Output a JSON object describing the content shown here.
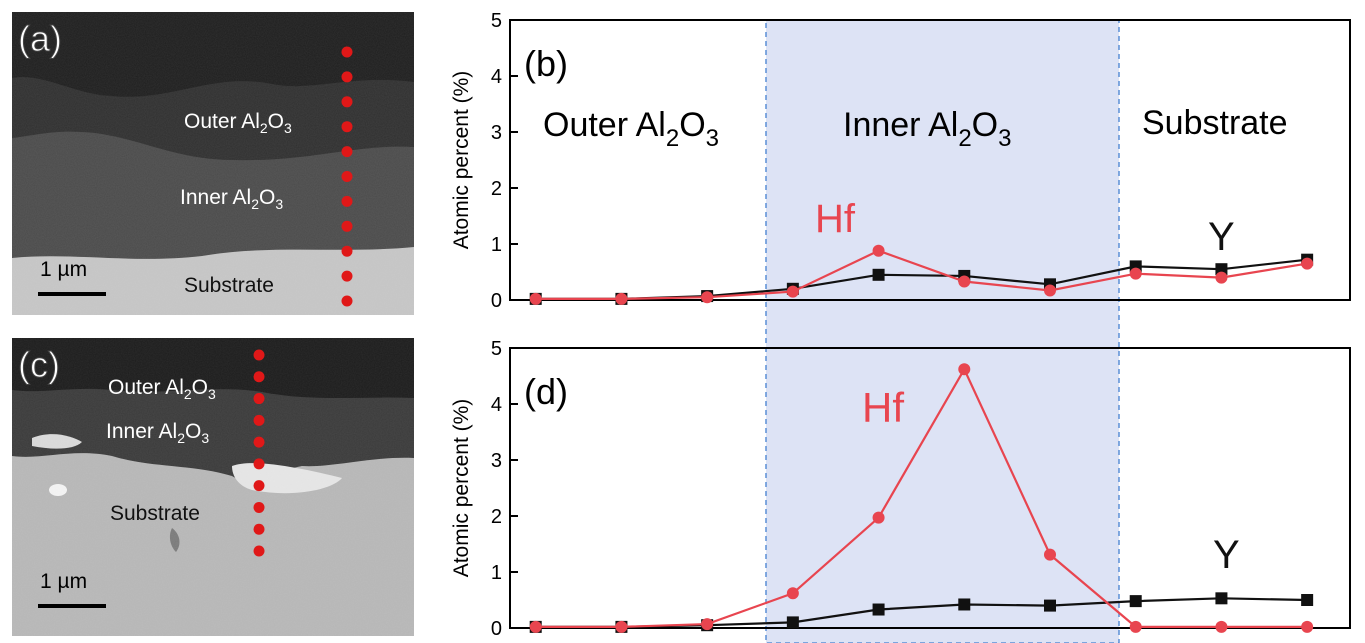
{
  "panel_a": {
    "letter": "(a)",
    "labels": {
      "outer": {
        "text": "Outer Al",
        "sub1": "2",
        "mid": "O",
        "sub2": "3"
      },
      "inner": {
        "text": "Inner Al",
        "sub1": "2",
        "mid": "O",
        "sub2": "3"
      },
      "substrate": "Substrate"
    },
    "scale_bar": "1 µm"
  },
  "panel_c": {
    "letter": "(c)",
    "labels": {
      "outer": {
        "text": "Outer Al",
        "sub1": "2",
        "mid": "O",
        "sub2": "3"
      },
      "inner": {
        "text": "Inner Al",
        "sub1": "2",
        "mid": "O",
        "sub2": "3"
      },
      "substrate": "Substrate"
    },
    "scale_bar": "1 µm"
  },
  "region_labels": {
    "outer": {
      "text": "Outer Al",
      "sub1": "2",
      "mid": "O",
      "sub2": "3"
    },
    "inner": {
      "text": "Inner Al",
      "sub1": "2",
      "mid": "O",
      "sub2": "3"
    },
    "substrate": "Substrate"
  },
  "colors": {
    "hf": "#e8454f",
    "y": "#111111",
    "shade": "#dde3f5",
    "shade_border": "#5b8fd6",
    "probe_dots": "#e01818"
  },
  "chart_data": [
    {
      "panel": "(b)",
      "type": "line",
      "ylabel": "Atomic percent (%)",
      "xlabel": "",
      "ylim": [
        0,
        5
      ],
      "yticks": [
        "0",
        "1",
        "2",
        "3",
        "4",
        "5"
      ],
      "x": [
        1,
        2,
        3,
        4,
        5,
        6,
        7,
        8,
        9,
        10
      ],
      "series": [
        {
          "name": "Hf",
          "marker": "circle",
          "values": [
            0.02,
            0.02,
            0.05,
            0.15,
            0.88,
            0.33,
            0.17,
            0.47,
            0.4,
            0.65
          ]
        },
        {
          "name": "Y",
          "marker": "square",
          "values": [
            0.02,
            0.02,
            0.07,
            0.2,
            0.45,
            0.43,
            0.28,
            0.6,
            0.55,
            0.72
          ]
        }
      ]
    },
    {
      "panel": "(d)",
      "type": "line",
      "ylabel": "Atomic percent (%)",
      "xlabel": "",
      "ylim": [
        0,
        5
      ],
      "yticks": [
        "0",
        "1",
        "2",
        "3",
        "4",
        "5"
      ],
      "x": [
        1,
        2,
        3,
        4,
        5,
        6,
        7,
        8,
        9,
        10
      ],
      "series": [
        {
          "name": "Hf",
          "marker": "circle",
          "values": [
            0.02,
            0.02,
            0.07,
            0.62,
            1.97,
            4.62,
            1.31,
            0.02,
            0.02,
            0.02
          ]
        },
        {
          "name": "Y",
          "marker": "square",
          "values": [
            0.02,
            0.02,
            0.05,
            0.1,
            0.33,
            0.42,
            0.4,
            0.48,
            0.53,
            0.5
          ]
        }
      ]
    }
  ]
}
